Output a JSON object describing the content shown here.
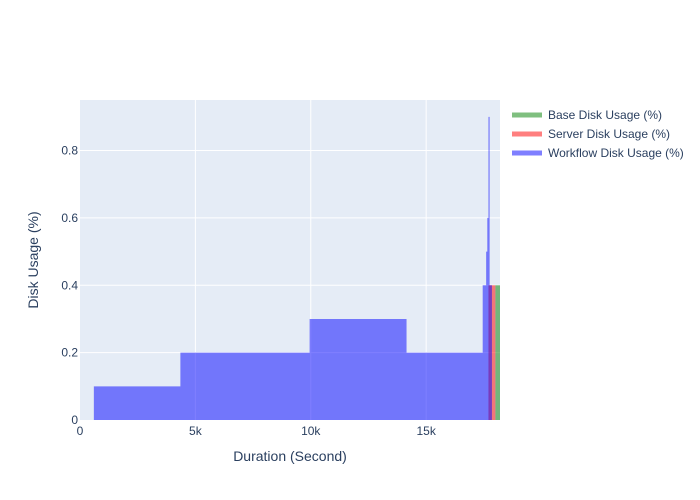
{
  "chart_data": {
    "type": "area",
    "xlabel": "Duration (Second)",
    "ylabel": "Disk Usage (%)",
    "xlim": [
      0,
      18200
    ],
    "ylim": [
      0,
      0.95
    ],
    "x_ticks": [
      0,
      5000,
      10000,
      15000
    ],
    "x_tick_labels": [
      "0",
      "5k",
      "10k",
      "15k"
    ],
    "y_ticks": [
      0,
      0.2,
      0.4,
      0.6,
      0.8
    ],
    "y_tick_labels": [
      "0",
      "0.2",
      "0.4",
      "0.6",
      "0.8"
    ],
    "grid": true,
    "legend_position": "top-right",
    "series": [
      {
        "name": "Base Disk Usage (%)",
        "color": "#008000",
        "opacity": 0.5,
        "points": [
          [
            18000,
            0
          ],
          [
            18000,
            0.4
          ],
          [
            18200,
            0.4
          ],
          [
            18200,
            0
          ]
        ]
      },
      {
        "name": "Server Disk Usage (%)",
        "color": "#ff0000",
        "opacity": 0.5,
        "points": [
          [
            17700,
            0
          ],
          [
            17700,
            0.4
          ],
          [
            18000,
            0.4
          ],
          [
            18000,
            0
          ]
        ]
      },
      {
        "name": "Workflow Disk Usage (%)",
        "color": "#0000ff",
        "opacity": 0.5,
        "points": [
          [
            600,
            0
          ],
          [
            600,
            0.1
          ],
          [
            4350,
            0.1
          ],
          [
            4350,
            0.2
          ],
          [
            9950,
            0.2
          ],
          [
            9950,
            0.3
          ],
          [
            14150,
            0.3
          ],
          [
            14150,
            0.2
          ],
          [
            17450,
            0.2
          ],
          [
            17450,
            0.4
          ],
          [
            17600,
            0.4
          ],
          [
            17600,
            0.5
          ],
          [
            17650,
            0.5
          ],
          [
            17650,
            0.6
          ],
          [
            17700,
            0.6
          ],
          [
            17700,
            0.9
          ],
          [
            17750,
            0.9
          ],
          [
            17750,
            0.4
          ],
          [
            17850,
            0.4
          ],
          [
            17850,
            0
          ]
        ]
      }
    ]
  }
}
